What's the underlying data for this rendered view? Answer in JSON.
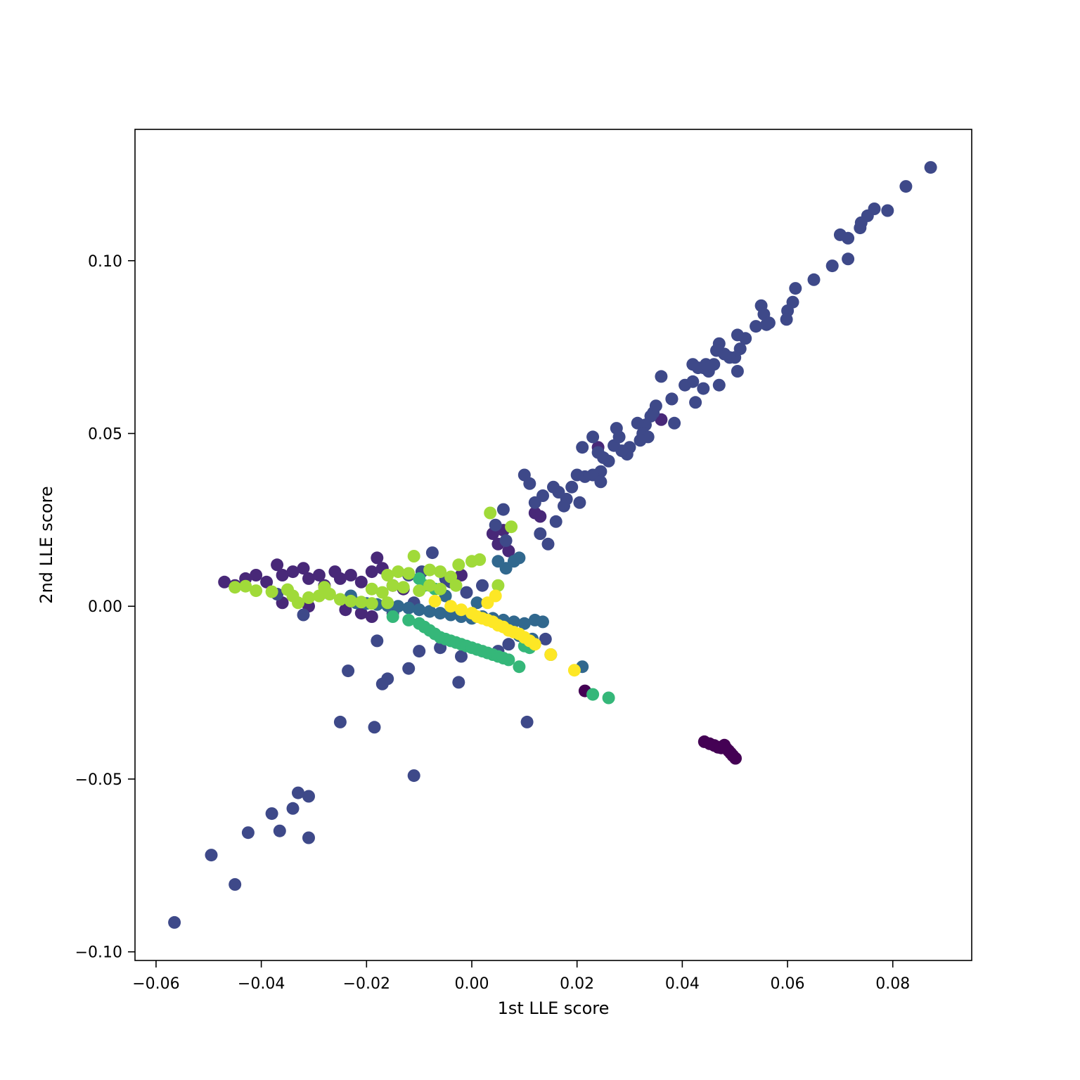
{
  "chart_data": {
    "type": "scatter",
    "title": "",
    "xlabel": "1st LLE score",
    "ylabel": "2nd LLE score",
    "xlim": [
      -0.064,
      0.095
    ],
    "ylim": [
      -0.1025,
      0.138
    ],
    "xticks": [
      -0.06,
      -0.04,
      -0.02,
      0.0,
      0.02,
      0.04,
      0.06,
      0.08
    ],
    "xtick_labels": [
      "−0.06",
      "−0.04",
      "−0.02",
      "0.00",
      "0.02",
      "0.04",
      "0.06",
      "0.08"
    ],
    "yticks": [
      -0.1,
      -0.05,
      0.0,
      0.05,
      0.1
    ],
    "ytick_labels": [
      "−0.10",
      "−0.05",
      "0.00",
      "0.05",
      "0.10"
    ],
    "grid": false,
    "legend": "none",
    "series": [
      {
        "color": "#440154",
        "points": [
          [
            0.0442,
            -0.0392
          ],
          [
            0.0452,
            -0.0398
          ],
          [
            0.0461,
            -0.0403
          ],
          [
            0.0468,
            -0.0408
          ],
          [
            0.0474,
            -0.041
          ],
          [
            0.048,
            -0.0402
          ],
          [
            0.0484,
            -0.0412
          ],
          [
            0.0488,
            -0.0418
          ],
          [
            0.0492,
            -0.0425
          ],
          [
            0.0496,
            -0.0432
          ],
          [
            0.0501,
            -0.044
          ],
          [
            0.0215,
            -0.0245
          ]
        ]
      },
      {
        "color": "#482878",
        "points": [
          [
            -0.047,
            0.007
          ],
          [
            -0.045,
            0.006
          ],
          [
            -0.043,
            0.008
          ],
          [
            -0.041,
            0.009
          ],
          [
            -0.039,
            0.007
          ],
          [
            -0.037,
            0.012
          ],
          [
            -0.036,
            0.009
          ],
          [
            -0.034,
            0.01
          ],
          [
            -0.032,
            0.011
          ],
          [
            -0.031,
            0.008
          ],
          [
            -0.029,
            0.009
          ],
          [
            -0.028,
            0.006
          ],
          [
            -0.026,
            0.01
          ],
          [
            -0.025,
            0.008
          ],
          [
            -0.023,
            0.009
          ],
          [
            -0.021,
            0.007
          ],
          [
            -0.019,
            0.01
          ],
          [
            -0.018,
            0.014
          ],
          [
            -0.017,
            0.011
          ],
          [
            -0.015,
            0.006
          ],
          [
            -0.013,
            0.005
          ],
          [
            -0.036,
            0.001
          ],
          [
            -0.031,
            0.0
          ],
          [
            -0.028,
            0.004
          ],
          [
            -0.024,
            -0.001
          ],
          [
            -0.021,
            -0.002
          ],
          [
            -0.019,
            -0.003
          ],
          [
            -0.002,
            0.009
          ],
          [
            0.004,
            0.021
          ],
          [
            0.005,
            0.018
          ],
          [
            0.006,
            0.022
          ],
          [
            0.007,
            0.016
          ],
          [
            0.012,
            0.027
          ],
          [
            0.013,
            0.026
          ],
          [
            0.038,
            0.06
          ],
          [
            0.024,
            0.046
          ],
          [
            0.036,
            0.054
          ]
        ]
      },
      {
        "color": "#3e4989",
        "points": [
          [
            0.0872,
            0.127
          ],
          [
            0.0825,
            0.1215
          ],
          [
            0.079,
            0.1145
          ],
          [
            0.0765,
            0.115
          ],
          [
            0.0752,
            0.113
          ],
          [
            0.074,
            0.111
          ],
          [
            0.0738,
            0.1095
          ],
          [
            0.07,
            0.1075
          ],
          [
            0.0715,
            0.1065
          ],
          [
            0.0715,
            0.1005
          ],
          [
            0.0685,
            0.0985
          ],
          [
            0.065,
            0.0945
          ],
          [
            0.0615,
            0.092
          ],
          [
            0.061,
            0.088
          ],
          [
            0.06,
            0.0855
          ],
          [
            0.0598,
            0.083
          ],
          [
            0.055,
            0.087
          ],
          [
            0.0555,
            0.0845
          ],
          [
            0.056,
            0.0815
          ],
          [
            0.0565,
            0.082
          ],
          [
            0.054,
            0.081
          ],
          [
            0.052,
            0.0775
          ],
          [
            0.0505,
            0.0785
          ],
          [
            0.051,
            0.0745
          ],
          [
            0.05,
            0.072
          ],
          [
            0.049,
            0.072
          ],
          [
            0.048,
            0.073
          ],
          [
            0.047,
            0.076
          ],
          [
            0.046,
            0.07
          ],
          [
            0.045,
            0.068
          ],
          [
            0.044,
            0.069
          ],
          [
            0.042,
            0.07
          ],
          [
            0.043,
            0.069
          ],
          [
            0.0445,
            0.07
          ],
          [
            0.0465,
            0.074
          ],
          [
            0.0505,
            0.068
          ],
          [
            0.047,
            0.064
          ],
          [
            0.044,
            0.063
          ],
          [
            0.042,
            0.065
          ],
          [
            0.0405,
            0.064
          ],
          [
            0.0425,
            0.059
          ],
          [
            0.036,
            0.0665
          ],
          [
            0.038,
            0.06
          ],
          [
            0.0385,
            0.053
          ],
          [
            0.035,
            0.058
          ],
          [
            0.0345,
            0.056
          ],
          [
            0.034,
            0.055
          ],
          [
            0.033,
            0.0525
          ],
          [
            0.0315,
            0.053
          ],
          [
            0.0325,
            0.05
          ],
          [
            0.0335,
            0.049
          ],
          [
            0.032,
            0.048
          ],
          [
            0.03,
            0.046
          ],
          [
            0.0295,
            0.044
          ],
          [
            0.0285,
            0.045
          ],
          [
            0.027,
            0.0465
          ],
          [
            0.0275,
            0.0515
          ],
          [
            0.028,
            0.049
          ],
          [
            0.026,
            0.042
          ],
          [
            0.025,
            0.043
          ],
          [
            0.024,
            0.0445
          ],
          [
            0.023,
            0.049
          ],
          [
            0.021,
            0.046
          ],
          [
            0.0245,
            0.039
          ],
          [
            0.023,
            0.038
          ],
          [
            0.0245,
            0.036
          ],
          [
            0.0215,
            0.0375
          ],
          [
            0.02,
            0.038
          ],
          [
            0.019,
            0.0345
          ],
          [
            0.0205,
            0.03
          ],
          [
            0.018,
            0.031
          ],
          [
            0.0175,
            0.029
          ],
          [
            0.0165,
            0.033
          ],
          [
            0.0155,
            0.0345
          ],
          [
            0.0135,
            0.032
          ],
          [
            0.012,
            0.03
          ],
          [
            0.01,
            0.038
          ],
          [
            0.011,
            0.0355
          ],
          [
            0.016,
            0.0245
          ],
          [
            0.013,
            0.021
          ],
          [
            0.0145,
            0.018
          ],
          [
            0.006,
            0.028
          ],
          [
            0.0045,
            0.0235
          ],
          [
            0.0065,
            0.019
          ],
          [
            -0.0075,
            0.0155
          ],
          [
            -0.0095,
            0.01
          ],
          [
            -0.012,
            0.009
          ],
          [
            -0.005,
            0.008
          ],
          [
            -0.004,
            0.007
          ],
          [
            -0.001,
            0.004
          ],
          [
            0.002,
            0.006
          ],
          [
            -0.037,
            0.0035
          ],
          [
            -0.032,
            -0.0025
          ],
          [
            -0.008,
            -0.0015
          ],
          [
            -0.011,
            0.001
          ],
          [
            -0.015,
            -0.002
          ],
          [
            -0.018,
            -0.01
          ],
          [
            -0.01,
            -0.013
          ],
          [
            -0.006,
            -0.012
          ],
          [
            -0.002,
            -0.0145
          ],
          [
            0.005,
            -0.013
          ],
          [
            0.007,
            -0.011
          ],
          [
            0.014,
            -0.0095
          ],
          [
            -0.012,
            -0.018
          ],
          [
            -0.016,
            -0.021
          ],
          [
            -0.017,
            -0.0225
          ],
          [
            -0.0235,
            -0.0187
          ],
          [
            -0.0025,
            -0.022
          ],
          [
            -0.025,
            -0.0335
          ],
          [
            -0.0185,
            -0.035
          ],
          [
            0.0105,
            -0.0335
          ],
          [
            -0.011,
            -0.049
          ],
          [
            -0.033,
            -0.054
          ],
          [
            -0.031,
            -0.055
          ],
          [
            -0.034,
            -0.0585
          ],
          [
            -0.038,
            -0.06
          ],
          [
            -0.0425,
            -0.0655
          ],
          [
            -0.0365,
            -0.065
          ],
          [
            -0.031,
            -0.067
          ],
          [
            -0.0495,
            -0.072
          ],
          [
            -0.045,
            -0.0805
          ],
          [
            -0.0565,
            -0.0915
          ]
        ]
      },
      {
        "color": "#31688e",
        "points": [
          [
            -0.022,
            0.001
          ],
          [
            -0.02,
            0.0008
          ],
          [
            -0.018,
            0.0005
          ],
          [
            -0.016,
            0.0002
          ],
          [
            -0.014,
            0.0
          ],
          [
            -0.012,
            -0.0005
          ],
          [
            -0.01,
            -0.001
          ],
          [
            -0.008,
            -0.0015
          ],
          [
            -0.006,
            -0.002
          ],
          [
            -0.004,
            -0.0025
          ],
          [
            -0.002,
            -0.003
          ],
          [
            0.0,
            -0.0035
          ],
          [
            0.002,
            -0.003
          ],
          [
            0.004,
            -0.0035
          ],
          [
            0.006,
            -0.004
          ],
          [
            0.008,
            -0.0045
          ],
          [
            0.01,
            -0.005
          ],
          [
            0.012,
            -0.004
          ],
          [
            0.0135,
            -0.0045
          ],
          [
            0.015,
            -0.014
          ],
          [
            0.005,
            0.013
          ],
          [
            0.0065,
            0.011
          ],
          [
            0.008,
            0.013
          ],
          [
            0.009,
            0.014
          ],
          [
            0.021,
            -0.0175
          ],
          [
            0.009,
            -0.0085
          ],
          [
            0.0115,
            -0.0095
          ],
          [
            -0.023,
            0.003
          ],
          [
            -0.005,
            0.003
          ],
          [
            0.001,
            0.001
          ]
        ]
      },
      {
        "color": "#35b779",
        "points": [
          [
            -0.015,
            -0.003
          ],
          [
            -0.012,
            -0.004
          ],
          [
            -0.01,
            -0.005
          ],
          [
            -0.009,
            -0.006
          ],
          [
            -0.008,
            -0.007
          ],
          [
            -0.007,
            -0.008
          ],
          [
            -0.006,
            -0.009
          ],
          [
            -0.005,
            -0.0095
          ],
          [
            -0.004,
            -0.01
          ],
          [
            -0.003,
            -0.0105
          ],
          [
            -0.002,
            -0.011
          ],
          [
            -0.001,
            -0.0115
          ],
          [
            0.0,
            -0.012
          ],
          [
            0.001,
            -0.0125
          ],
          [
            0.002,
            -0.013
          ],
          [
            0.003,
            -0.0135
          ],
          [
            0.004,
            -0.014
          ],
          [
            0.005,
            -0.0145
          ],
          [
            0.006,
            -0.015
          ],
          [
            0.007,
            -0.0155
          ],
          [
            0.009,
            -0.0175
          ],
          [
            0.023,
            -0.0255
          ],
          [
            0.026,
            -0.0265
          ],
          [
            -0.01,
            0.008
          ],
          [
            -0.009,
            0.006
          ],
          [
            -0.007,
            0.005
          ],
          [
            0.011,
            -0.012
          ],
          [
            0.01,
            -0.0115
          ]
        ]
      },
      {
        "color": "#a0da39",
        "points": [
          [
            -0.045,
            0.0055
          ],
          [
            -0.043,
            0.0058
          ],
          [
            -0.041,
            0.0045
          ],
          [
            -0.038,
            0.0042
          ],
          [
            -0.035,
            0.0048
          ],
          [
            -0.034,
            0.003
          ],
          [
            -0.031,
            0.0025
          ],
          [
            -0.029,
            0.003
          ],
          [
            -0.027,
            0.0035
          ],
          [
            -0.025,
            0.002
          ],
          [
            -0.023,
            0.0015
          ],
          [
            -0.021,
            0.0012
          ],
          [
            -0.019,
            0.0008
          ],
          [
            -0.016,
            0.001
          ],
          [
            -0.016,
            0.009
          ],
          [
            -0.014,
            0.01
          ],
          [
            -0.012,
            0.0095
          ],
          [
            -0.011,
            0.0145
          ],
          [
            -0.008,
            0.0105
          ],
          [
            -0.006,
            0.01
          ],
          [
            -0.004,
            0.0085
          ],
          [
            -0.0025,
            0.012
          ],
          [
            0.0,
            0.013
          ],
          [
            0.0015,
            0.0135
          ],
          [
            0.0035,
            0.027
          ],
          [
            0.005,
            0.006
          ],
          [
            0.0075,
            0.023
          ],
          [
            -0.019,
            0.005
          ],
          [
            -0.017,
            0.004
          ],
          [
            -0.015,
            0.006
          ],
          [
            -0.013,
            0.0055
          ],
          [
            -0.01,
            0.0045
          ],
          [
            -0.008,
            0.006
          ],
          [
            -0.006,
            0.005
          ],
          [
            -0.003,
            0.006
          ],
          [
            -0.033,
            0.001
          ],
          [
            -0.028,
            0.0055
          ]
        ]
      },
      {
        "color": "#fde725",
        "points": [
          [
            -0.007,
            0.0015
          ],
          [
            -0.004,
            0.0
          ],
          [
            -0.002,
            -0.001
          ],
          [
            0.0,
            -0.002
          ],
          [
            0.001,
            -0.003
          ],
          [
            0.002,
            -0.0035
          ],
          [
            0.003,
            -0.004
          ],
          [
            0.004,
            -0.0045
          ],
          [
            0.005,
            -0.0055
          ],
          [
            0.006,
            -0.006
          ],
          [
            0.007,
            -0.007
          ],
          [
            0.008,
            -0.0075
          ],
          [
            0.009,
            -0.008
          ],
          [
            0.01,
            -0.009
          ],
          [
            0.011,
            -0.01
          ],
          [
            0.012,
            -0.011
          ],
          [
            0.015,
            -0.014
          ],
          [
            0.0195,
            -0.0185
          ],
          [
            0.0045,
            0.003
          ],
          [
            0.003,
            0.001
          ]
        ]
      }
    ]
  }
}
